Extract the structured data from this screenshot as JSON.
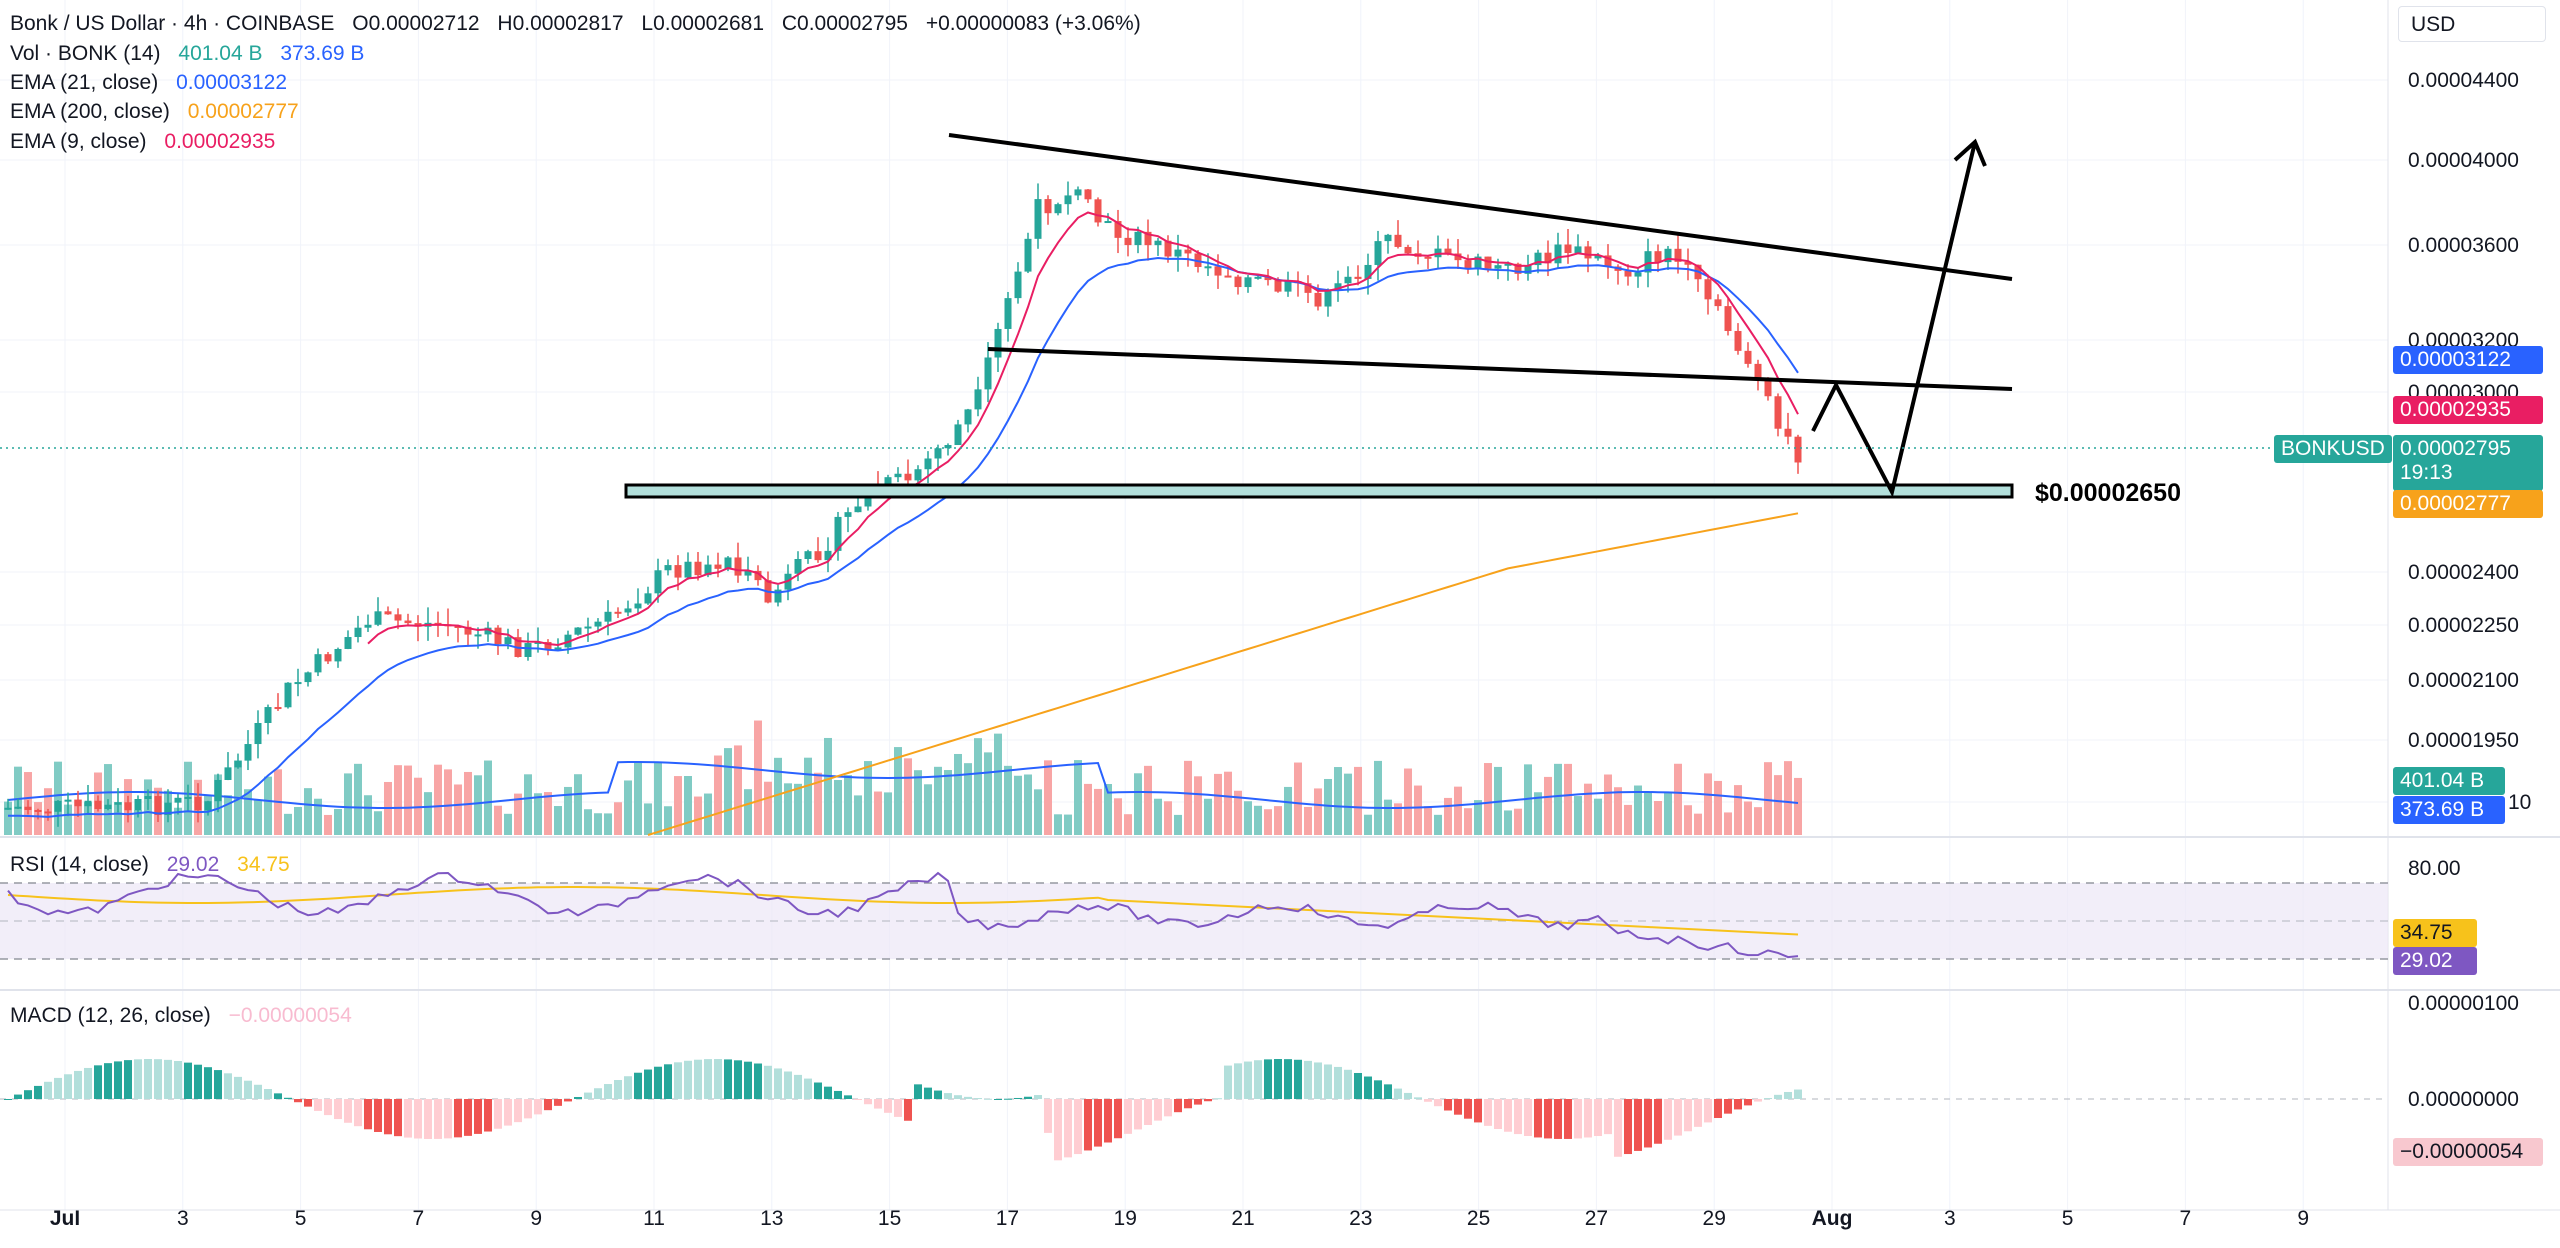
{
  "header": {
    "symbol": "Bonk / US Dollar · 4h · COINBASE",
    "open": "O0.00002712",
    "high": "H0.00002817",
    "low": "L0.00002681",
    "close": "C0.00002795",
    "change": "+0.00000083 (+3.06%)"
  },
  "currency": "USD",
  "indicators": {
    "vol": {
      "label": "Vol · BONK (14)",
      "v1": "401.04 B",
      "v2": "373.69 B"
    },
    "ema21": {
      "label": "EMA (21, close)",
      "value": "0.00003122"
    },
    "ema200": {
      "label": "EMA (200, close)",
      "value": "0.00002777"
    },
    "ema9": {
      "label": "EMA (9, close)",
      "value": "0.00002935"
    }
  },
  "rsi": {
    "label": "RSI (14, close)",
    "value": "29.02",
    "ma": "34.75",
    "level_top": "80.00"
  },
  "macd": {
    "label": "MACD (12, 26, close)",
    "value": "−0.00000054",
    "top": "0.00000100",
    "zero": "0.00000000",
    "tag": "−0.00000054"
  },
  "price_tags": {
    "symbol": "BONKUSD",
    "last": "0.00002795",
    "countdown": "19:13",
    "ema21": "0.00003122",
    "ema9": "0.00002935",
    "ema200": "0.00002777",
    "vol1": "401.04 B",
    "vol2": "373.69 B",
    "support": "$0.00002650"
  },
  "colors": {
    "up": "#26a69a",
    "down": "#ef5350",
    "ema21": "#2962ff",
    "ema200": "#f7a21b",
    "ema9": "#e91e63",
    "rsi": "#7e57c2",
    "support_fill": "#b2dfdb"
  },
  "chart_data": {
    "type": "candlestick",
    "y_axis_ticks": [
      "0.00004400",
      "0.00004000",
      "0.00003600",
      "0.00003200",
      "0.00003000",
      "0.00002400",
      "0.00002250",
      "0.00002100",
      "0.00001950",
      "10"
    ],
    "x_axis_ticks": [
      "Jul",
      "3",
      "5",
      "7",
      "9",
      "11",
      "13",
      "15",
      "17",
      "19",
      "21",
      "23",
      "25",
      "27",
      "29",
      "Aug",
      "3",
      "5",
      "7",
      "9"
    ],
    "support_level": 2.65e-05,
    "ema200_end": 2.777e-05,
    "ema21_end": 3.122e-05,
    "ema9_end": 2.935e-05,
    "last_close": 2.795e-05,
    "rsi_levels": [
      80
    ]
  }
}
